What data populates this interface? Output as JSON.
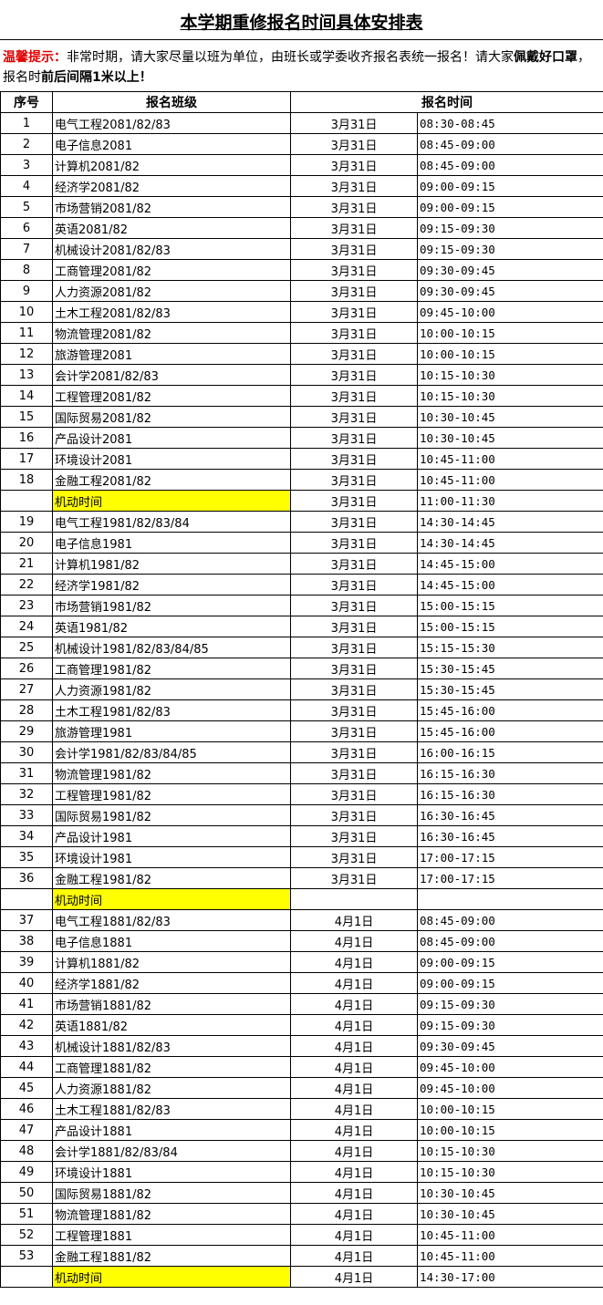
{
  "title": "本学期重修报名时间具体安排表",
  "notice": {
    "label": "温馨提示：",
    "text1": "非常时期，请大家尽量以班为单位，由班长或学委收齐报名表统一报名！请大家",
    "bold1": "佩戴好口罩",
    "text2": "，报名时",
    "bold2": "前后间隔1米以上！"
  },
  "headers": {
    "no": "序号",
    "class": "报名班级",
    "time": "报名时间"
  },
  "highlight_color": "#ffff00",
  "rows": [
    [
      "1",
      "电气工程2081/82/83",
      "3月31日",
      "08:30-08:45"
    ],
    [
      "2",
      "电子信息2081",
      "3月31日",
      "08:45-09:00"
    ],
    [
      "3",
      "计算机2081/82",
      "3月31日",
      "08:45-09:00"
    ],
    [
      "4",
      "经济学2081/82",
      "3月31日",
      "09:00-09:15"
    ],
    [
      "5",
      "市场营销2081/82",
      "3月31日",
      "09:00-09:15"
    ],
    [
      "6",
      "英语2081/82",
      "3月31日",
      "09:15-09:30"
    ],
    [
      "7",
      "机械设计2081/82/83",
      "3月31日",
      "09:15-09:30"
    ],
    [
      "8",
      "工商管理2081/82",
      "3月31日",
      "09:30-09:45"
    ],
    [
      "9",
      "人力资源2081/82",
      "3月31日",
      "09:30-09:45"
    ],
    [
      "10",
      "土木工程2081/82/83",
      "3月31日",
      "09:45-10:00"
    ],
    [
      "11",
      "物流管理2081/82",
      "3月31日",
      "10:00-10:15"
    ],
    [
      "12",
      "旅游管理2081",
      "3月31日",
      "10:00-10:15"
    ],
    [
      "13",
      "会计学2081/82/83",
      "3月31日",
      "10:15-10:30"
    ],
    [
      "14",
      "工程管理2081/82",
      "3月31日",
      "10:15-10:30"
    ],
    [
      "15",
      "国际贸易2081/82",
      "3月31日",
      "10:30-10:45"
    ],
    [
      "16",
      "产品设计2081",
      "3月31日",
      "10:30-10:45"
    ],
    [
      "17",
      "环境设计2081",
      "3月31日",
      "10:45-11:00"
    ],
    [
      "18",
      "金融工程2081/82",
      "3月31日",
      "10:45-11:00"
    ],
    [
      "",
      "机动时间",
      "3月31日",
      "11:00-11:30"
    ],
    [
      "19",
      "电气工程1981/82/83/84",
      "3月31日",
      "14:30-14:45"
    ],
    [
      "20",
      "电子信息1981",
      "3月31日",
      "14:30-14:45"
    ],
    [
      "21",
      "计算机1981/82",
      "3月31日",
      "14:45-15:00"
    ],
    [
      "22",
      "经济学1981/82",
      "3月31日",
      "14:45-15:00"
    ],
    [
      "23",
      "市场营销1981/82",
      "3月31日",
      "15:00-15:15"
    ],
    [
      "24",
      "英语1981/82",
      "3月31日",
      "15:00-15:15"
    ],
    [
      "25",
      "机械设计1981/82/83/84/85",
      "3月31日",
      "15:15-15:30"
    ],
    [
      "26",
      "工商管理1981/82",
      "3月31日",
      "15:30-15:45"
    ],
    [
      "27",
      "人力资源1981/82",
      "3月31日",
      "15:30-15:45"
    ],
    [
      "28",
      "土木工程1981/82/83",
      "3月31日",
      "15:45-16:00"
    ],
    [
      "29",
      "旅游管理1981",
      "3月31日",
      "15:45-16:00"
    ],
    [
      "30",
      "会计学1981/82/83/84/85",
      "3月31日",
      "16:00-16:15"
    ],
    [
      "31",
      "物流管理1981/82",
      "3月31日",
      "16:15-16:30"
    ],
    [
      "32",
      "工程管理1981/82",
      "3月31日",
      "16:15-16:30"
    ],
    [
      "33",
      "国际贸易1981/82",
      "3月31日",
      "16:30-16:45"
    ],
    [
      "34",
      "产品设计1981",
      "3月31日",
      "16:30-16:45"
    ],
    [
      "35",
      "环境设计1981",
      "3月31日",
      "17:00-17:15"
    ],
    [
      "36",
      "金融工程1981/82",
      "3月31日",
      "17:00-17:15"
    ],
    [
      "",
      "机动时间",
      "",
      ""
    ],
    [
      "37",
      "电气工程1881/82/83",
      "4月1日",
      "08:45-09:00"
    ],
    [
      "38",
      "电子信息1881",
      "4月1日",
      "08:45-09:00"
    ],
    [
      "39",
      "计算机1881/82",
      "4月1日",
      "09:00-09:15"
    ],
    [
      "40",
      "经济学1881/82",
      "4月1日",
      "09:00-09:15"
    ],
    [
      "41",
      "市场营销1881/82",
      "4月1日",
      "09:15-09:30"
    ],
    [
      "42",
      "英语1881/82",
      "4月1日",
      "09:15-09:30"
    ],
    [
      "43",
      "机械设计1881/82/83",
      "4月1日",
      "09:30-09:45"
    ],
    [
      "44",
      "工商管理1881/82",
      "4月1日",
      "09:45-10:00"
    ],
    [
      "45",
      "人力资源1881/82",
      "4月1日",
      "09:45-10:00"
    ],
    [
      "46",
      "土木工程1881/82/83",
      "4月1日",
      "10:00-10:15"
    ],
    [
      "47",
      "产品设计1881",
      "4月1日",
      "10:00-10:15"
    ],
    [
      "48",
      "会计学1881/82/83/84",
      "4月1日",
      "10:15-10:30"
    ],
    [
      "49",
      "环境设计1881",
      "4月1日",
      "10:15-10:30"
    ],
    [
      "50",
      "国际贸易1881/82",
      "4月1日",
      "10:30-10:45"
    ],
    [
      "51",
      "物流管理1881/82",
      "4月1日",
      "10:30-10:45"
    ],
    [
      "52",
      "工程管理1881",
      "4月1日",
      "10:45-11:00"
    ],
    [
      "53",
      "金融工程1881/82",
      "4月1日",
      "10:45-11:00"
    ],
    [
      "",
      "机动时间",
      "4月1日",
      "14:30-17:00"
    ]
  ]
}
